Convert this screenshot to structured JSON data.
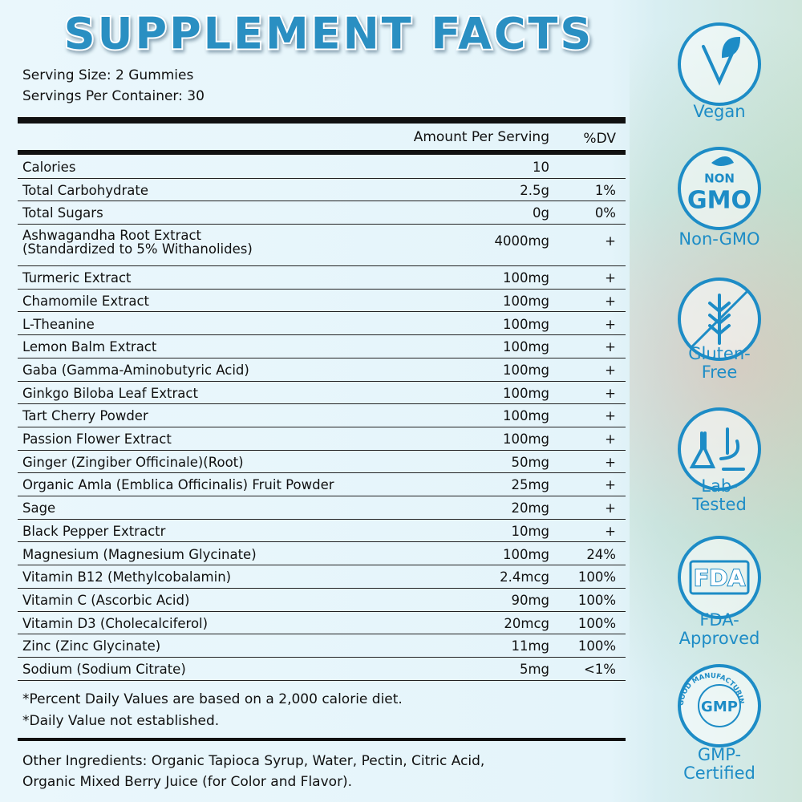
{
  "title": "SUPPLEMENT FACTS",
  "serving_size": "Serving Size: 2 Gummies",
  "servings_per_container": "Servings Per Container: 30",
  "table": {
    "header": [
      "Amount Per Serving",
      "%DV"
    ],
    "rows": [
      {
        "name": "Calories",
        "amount": "10"
      },
      {
        "name": "Total Carbohydrate",
        "amount": "2.5g",
        "dv": "1%"
      },
      {
        "name": "Total Sugars",
        "amount": "0g",
        "dv": "0%"
      },
      {
        "name": "Ashwagandha Root Extract\n(Standardized to 5% Withanolides)",
        "amount": "4000mg",
        "dv": "+"
      },
      {
        "name": "Turmeric Extract",
        "amount": "100mg",
        "dv": "+"
      },
      {
        "name": "Chamomile Extract",
        "amount": "100mg",
        "dv": "+"
      },
      {
        "name": "L-Theanine",
        "amount": "100mg",
        "dv": "+"
      },
      {
        "name": "Lemon Balm Extract",
        "amount": "100mg",
        "dv": "+"
      },
      {
        "name": "Gaba (Gamma-Aminobutyric Acid)",
        "amount": "100mg",
        "dv": "+"
      },
      {
        "name": "Ginkgo Biloba Leaf Extract",
        "amount": "100mg",
        "dv": "+"
      },
      {
        "name": "Tart Cherry Powder",
        "amount": "100mg",
        "dv": "+"
      },
      {
        "name": "Passion Flower Extract",
        "amount": "100mg",
        "dv": "+"
      },
      {
        "name": "Ginger (Zingiber Officinale)(Root)",
        "amount": "50mg",
        "dv": "+"
      },
      {
        "name": "Organic Amla (Emblica Officinalis) Fruit Powder",
        "amount": "25mg",
        "dv": "+"
      },
      {
        "name": "Sage",
        "amount": "20mg",
        "dv": "+"
      },
      {
        "name": "Black Pepper Extractr",
        "amount": "10mg",
        "dv": "+"
      },
      {
        "name": "Magnesium (Magnesium Glycinate)",
        "amount": "100mg",
        "dv": "24%"
      },
      {
        "name": "Vitamin B12 (Methylcobalamin)",
        "amount": "2.4mcg",
        "dv": "100%"
      },
      {
        "name": "Vitamin C (Ascorbic Acid)",
        "amount": "90mg",
        "dv": "100%"
      },
      {
        "name": "Vitamin D3 (Cholecalciferol)",
        "amount": "20mcg",
        "dv": "100%"
      },
      {
        "name": "Zinc (Zinc Glycinate)",
        "amount": "11mg",
        "dv": "100%"
      },
      {
        "name": "Sodium (Sodium Citrate)",
        "amount": "5mg",
        "dv": "<1%"
      }
    ]
  },
  "footnotes": [
    "*Percent Daily Values are based on a 2,000 calorie diet.",
    "*Daily Value not established."
  ],
  "other_ingredients": "Other Ingredients: Organic Tapioca Syrup, Water, Pectin, Citric Acid,\nOrganic Mixed Berry Juice (for Color and Flavor).",
  "badges": [
    {
      "label": "Vegan"
    },
    {
      "icon_text": [
        "NON",
        "GMO"
      ],
      "label": "Non-GMO"
    },
    {
      "label": "Gluten-\nFree"
    },
    {
      "label": "Lab-\nTested"
    },
    {
      "icon_text": [
        "FDA"
      ],
      "label": "FDA-\nApproved"
    },
    {
      "icon_text": [
        "GMP",
        "GOOD MANUFACTURING PRACTICE"
      ],
      "label": "GMP-\nCertified"
    }
  ]
}
